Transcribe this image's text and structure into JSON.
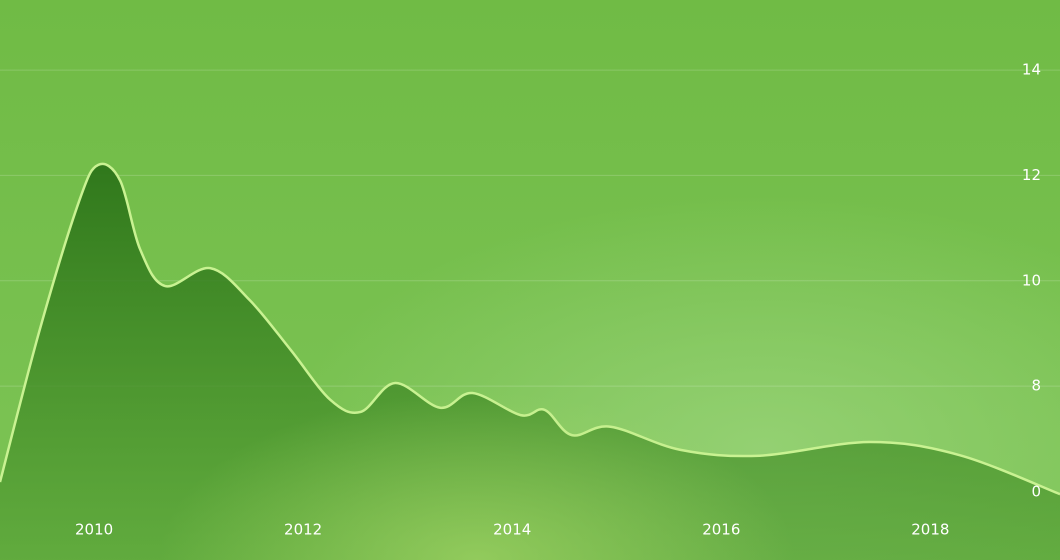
{
  "chart_data": {
    "type": "area",
    "x": [
      2009.1,
      2009.48,
      2009.86,
      2010.04,
      2010.25,
      2010.44,
      2010.68,
      2011.11,
      2011.49,
      2011.88,
      2012.26,
      2012.55,
      2012.88,
      2013.31,
      2013.62,
      2014.08,
      2014.31,
      2014.57,
      2014.94,
      2015.61,
      2016.37,
      2017.42,
      2018.28,
      2019.24
    ],
    "values": [
      6.18,
      9.07,
      11.53,
      12.2,
      11.9,
      10.6,
      9.9,
      10.24,
      9.63,
      8.69,
      7.74,
      7.51,
      8.06,
      7.59,
      7.87,
      7.45,
      7.55,
      7.07,
      7.23,
      6.79,
      6.68,
      6.94,
      6.69,
      5.95
    ],
    "color": "#2f7a1f",
    "line_color": "#c9f292",
    "xlim": [
      2009.1,
      2019.24
    ],
    "xticks": [
      2010,
      2012,
      2014,
      2016,
      2018
    ],
    "ylim": [
      4.7,
      15.33
    ],
    "yticks": [
      14,
      12,
      10,
      8
    ],
    "y_floor_label": "0",
    "grid": true
  }
}
